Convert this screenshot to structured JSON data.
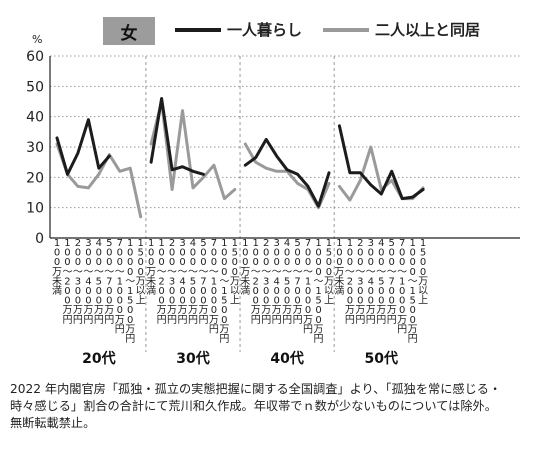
{
  "chart_data": {
    "type": "line",
    "ylabel": "%",
    "ylim": [
      0,
      60
    ],
    "yticks": [
      0,
      10,
      20,
      30,
      40,
      50,
      60
    ],
    "grid": "dotted horizontal",
    "legend_position": "top",
    "legend_group": "女",
    "categories": [
      "100万円未満",
      "100～200万円",
      "200～300万円",
      "300～400万円",
      "400～500万円",
      "500～700万円",
      "700～1000万円",
      "1000～1500万円",
      "1500万円以上"
    ],
    "tick_labels": [
      [
        "1",
        "0",
        "0",
        "万",
        "未",
        "満"
      ],
      [
        "1",
        "0",
        "0",
        "～",
        "2",
        "0",
        "0",
        "万",
        "円"
      ],
      [
        "2",
        "0",
        "0",
        "～",
        "3",
        "0",
        "0",
        "万",
        "円"
      ],
      [
        "3",
        "0",
        "0",
        "～",
        "4",
        "0",
        "0",
        "万",
        "円"
      ],
      [
        "4",
        "0",
        "0",
        "～",
        "5",
        "0",
        "0",
        "万",
        "円"
      ],
      [
        "5",
        "0",
        "0",
        "～",
        "7",
        "0",
        "0",
        "万",
        "円"
      ],
      [
        "7",
        "0",
        "0",
        "～",
        "1",
        "0",
        "0",
        "0",
        "万",
        "円"
      ],
      [
        "1",
        "0",
        "0",
        "0",
        "～",
        "1",
        "5",
        "0",
        "0",
        "万",
        "円"
      ],
      [
        "1",
        "5",
        "0",
        "0",
        "万",
        "以",
        "上"
      ]
    ],
    "panels": [
      {
        "label": "20代",
        "series": [
          {
            "name": "一人暮らし",
            "values": [
              33,
              21,
              28,
              39,
              23,
              27,
              null,
              null,
              null
            ]
          },
          {
            "name": "二人以上と同居",
            "values": [
              31,
              21,
              17,
              16.5,
              21,
              27.5,
              22,
              23,
              7
            ]
          }
        ]
      },
      {
        "label": "30代",
        "series": [
          {
            "name": "一人暮らし",
            "values": [
              25,
              46,
              22.5,
              23.5,
              22,
              21,
              null,
              null,
              13.5
            ]
          },
          {
            "name": "二人以上と同居",
            "values": [
              31,
              45,
              16,
              42,
              16.5,
              20,
              24,
              13,
              16
            ]
          }
        ]
      },
      {
        "label": "40代",
        "series": [
          {
            "name": "一人暮らし",
            "values": [
              24,
              26.5,
              32.5,
              27,
              22.5,
              21,
              17,
              10.5,
              21.5
            ]
          },
          {
            "name": "二人以上と同居",
            "values": [
              31,
              25,
              23,
              22,
              22,
              18,
              16,
              10,
              18
            ]
          }
        ]
      },
      {
        "label": "50代",
        "series": [
          {
            "name": "一人暮らし",
            "values": [
              37,
              21.5,
              21.5,
              17.5,
              14.5,
              22,
              13,
              13.5,
              16
            ]
          },
          {
            "name": "二人以上と同居",
            "values": [
              17,
              12.5,
              19,
              30,
              16,
              19,
              13,
              13,
              16.5
            ]
          }
        ]
      }
    ]
  },
  "colors": {
    "series_1": "#1c1c1c",
    "series_2": "#9a9a9a",
    "axis": "#222222",
    "grid": "#9a9a9a",
    "legend_box": "#9c9c9c"
  },
  "footnote": {
    "line1": "2022 年内閣官房「孤独・孤立の実態把握に関する全国調査」より、「孤独を常に感じる・",
    "line2": "時々感じる」割合の合計にて荒川和久作成。年収帯でｎ数が少ないものについては除外。",
    "line3": "無断転載禁止。"
  }
}
